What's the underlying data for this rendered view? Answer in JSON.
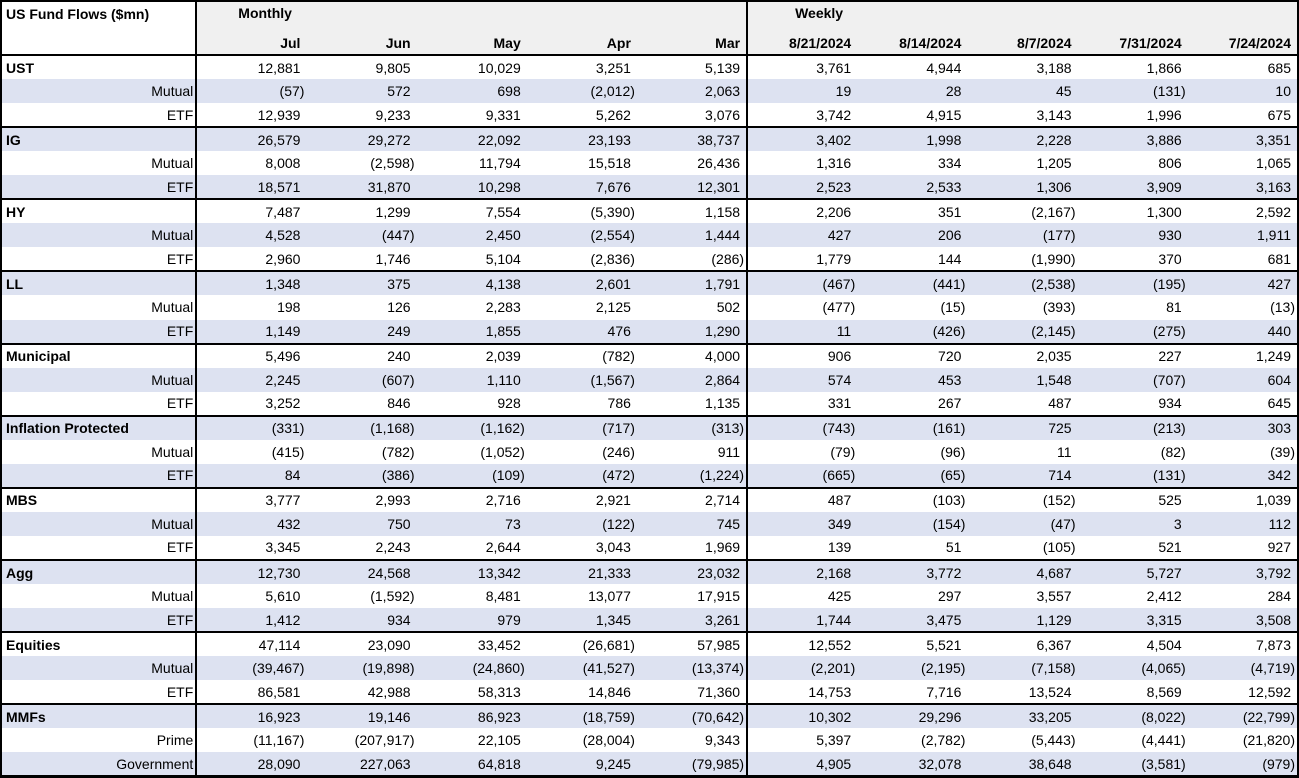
{
  "colors": {
    "row_stripe": "#dde2f1",
    "header_bg": "#f0f0f0",
    "border": "#000000",
    "text": "#000000"
  },
  "chart_data": {
    "type": "table",
    "title": "US Fund Flows ($mn)",
    "column_groups": [
      {
        "label": "Monthly",
        "columns": [
          "Jul",
          "Jun",
          "May",
          "Apr",
          "Mar"
        ]
      },
      {
        "label": "Weekly",
        "columns": [
          "8/21/2024",
          "8/14/2024",
          "8/7/2024",
          "7/31/2024",
          "7/24/2024"
        ]
      }
    ],
    "groups": [
      {
        "name": "UST",
        "rows": [
          {
            "label": "UST",
            "kind": "category",
            "monthly": [
              "12,881",
              "9,805",
              "10,029",
              "3,251",
              "5,139"
            ],
            "weekly": [
              "3,761",
              "4,944",
              "3,188",
              "1,866",
              "685"
            ]
          },
          {
            "label": "Mutual",
            "kind": "sub",
            "monthly": [
              "(57)",
              "572",
              "698",
              "(2,012)",
              "2,063"
            ],
            "weekly": [
              "19",
              "28",
              "45",
              "(131)",
              "10"
            ]
          },
          {
            "label": "ETF",
            "kind": "sub",
            "monthly": [
              "12,939",
              "9,233",
              "9,331",
              "5,262",
              "3,076"
            ],
            "weekly": [
              "3,742",
              "4,915",
              "3,143",
              "1,996",
              "675"
            ]
          }
        ]
      },
      {
        "name": "IG",
        "rows": [
          {
            "label": "IG",
            "kind": "category",
            "monthly": [
              "26,579",
              "29,272",
              "22,092",
              "23,193",
              "38,737"
            ],
            "weekly": [
              "3,402",
              "1,998",
              "2,228",
              "3,886",
              "3,351"
            ]
          },
          {
            "label": "Mutual",
            "kind": "sub",
            "monthly": [
              "8,008",
              "(2,598)",
              "11,794",
              "15,518",
              "26,436"
            ],
            "weekly": [
              "1,316",
              "334",
              "1,205",
              "806",
              "1,065"
            ]
          },
          {
            "label": "ETF",
            "kind": "sub",
            "monthly": [
              "18,571",
              "31,870",
              "10,298",
              "7,676",
              "12,301"
            ],
            "weekly": [
              "2,523",
              "2,533",
              "1,306",
              "3,909",
              "3,163"
            ]
          }
        ]
      },
      {
        "name": "HY",
        "rows": [
          {
            "label": "HY",
            "kind": "category",
            "monthly": [
              "7,487",
              "1,299",
              "7,554",
              "(5,390)",
              "1,158"
            ],
            "weekly": [
              "2,206",
              "351",
              "(2,167)",
              "1,300",
              "2,592"
            ]
          },
          {
            "label": "Mutual",
            "kind": "sub",
            "monthly": [
              "4,528",
              "(447)",
              "2,450",
              "(2,554)",
              "1,444"
            ],
            "weekly": [
              "427",
              "206",
              "(177)",
              "930",
              "1,911"
            ]
          },
          {
            "label": "ETF",
            "kind": "sub",
            "monthly": [
              "2,960",
              "1,746",
              "5,104",
              "(2,836)",
              "(286)"
            ],
            "weekly": [
              "1,779",
              "144",
              "(1,990)",
              "370",
              "681"
            ]
          }
        ]
      },
      {
        "name": "LL",
        "rows": [
          {
            "label": "LL",
            "kind": "category",
            "monthly": [
              "1,348",
              "375",
              "4,138",
              "2,601",
              "1,791"
            ],
            "weekly": [
              "(467)",
              "(441)",
              "(2,538)",
              "(195)",
              "427"
            ]
          },
          {
            "label": "Mutual",
            "kind": "sub",
            "monthly": [
              "198",
              "126",
              "2,283",
              "2,125",
              "502"
            ],
            "weekly": [
              "(477)",
              "(15)",
              "(393)",
              "81",
              "(13)"
            ]
          },
          {
            "label": "ETF",
            "kind": "sub",
            "monthly": [
              "1,149",
              "249",
              "1,855",
              "476",
              "1,290"
            ],
            "weekly": [
              "11",
              "(426)",
              "(2,145)",
              "(275)",
              "440"
            ]
          }
        ]
      },
      {
        "name": "Municipal",
        "rows": [
          {
            "label": "Municipal",
            "kind": "category",
            "monthly": [
              "5,496",
              "240",
              "2,039",
              "(782)",
              "4,000"
            ],
            "weekly": [
              "906",
              "720",
              "2,035",
              "227",
              "1,249"
            ]
          },
          {
            "label": "Mutual",
            "kind": "sub",
            "monthly": [
              "2,245",
              "(607)",
              "1,110",
              "(1,567)",
              "2,864"
            ],
            "weekly": [
              "574",
              "453",
              "1,548",
              "(707)",
              "604"
            ]
          },
          {
            "label": "ETF",
            "kind": "sub",
            "monthly": [
              "3,252",
              "846",
              "928",
              "786",
              "1,135"
            ],
            "weekly": [
              "331",
              "267",
              "487",
              "934",
              "645"
            ]
          }
        ]
      },
      {
        "name": "Inflation Protected",
        "rows": [
          {
            "label": "Inflation Protected",
            "kind": "category",
            "monthly": [
              "(331)",
              "(1,168)",
              "(1,162)",
              "(717)",
              "(313)"
            ],
            "weekly": [
              "(743)",
              "(161)",
              "725",
              "(213)",
              "303"
            ]
          },
          {
            "label": "Mutual",
            "kind": "sub",
            "monthly": [
              "(415)",
              "(782)",
              "(1,052)",
              "(246)",
              "911"
            ],
            "weekly": [
              "(79)",
              "(96)",
              "11",
              "(82)",
              "(39)"
            ]
          },
          {
            "label": "ETF",
            "kind": "sub",
            "monthly": [
              "84",
              "(386)",
              "(109)",
              "(472)",
              "(1,224)"
            ],
            "weekly": [
              "(665)",
              "(65)",
              "714",
              "(131)",
              "342"
            ]
          }
        ]
      },
      {
        "name": "MBS",
        "rows": [
          {
            "label": "MBS",
            "kind": "category",
            "monthly": [
              "3,777",
              "2,993",
              "2,716",
              "2,921",
              "2,714"
            ],
            "weekly": [
              "487",
              "(103)",
              "(152)",
              "525",
              "1,039"
            ]
          },
          {
            "label": "Mutual",
            "kind": "sub",
            "monthly": [
              "432",
              "750",
              "73",
              "(122)",
              "745"
            ],
            "weekly": [
              "349",
              "(154)",
              "(47)",
              "3",
              "112"
            ]
          },
          {
            "label": "ETF",
            "kind": "sub",
            "monthly": [
              "3,345",
              "2,243",
              "2,644",
              "3,043",
              "1,969"
            ],
            "weekly": [
              "139",
              "51",
              "(105)",
              "521",
              "927"
            ]
          }
        ]
      },
      {
        "name": "Agg",
        "rows": [
          {
            "label": "Agg",
            "kind": "category",
            "monthly": [
              "12,730",
              "24,568",
              "13,342",
              "21,333",
              "23,032"
            ],
            "weekly": [
              "2,168",
              "3,772",
              "4,687",
              "5,727",
              "3,792"
            ]
          },
          {
            "label": "Mutual",
            "kind": "sub",
            "monthly": [
              "5,610",
              "(1,592)",
              "8,481",
              "13,077",
              "17,915"
            ],
            "weekly": [
              "425",
              "297",
              "3,557",
              "2,412",
              "284"
            ]
          },
          {
            "label": "ETF",
            "kind": "sub",
            "monthly": [
              "1,412",
              "934",
              "979",
              "1,345",
              "3,261"
            ],
            "weekly": [
              "1,744",
              "3,475",
              "1,129",
              "3,315",
              "3,508"
            ]
          }
        ]
      },
      {
        "name": "Equities",
        "rows": [
          {
            "label": "Equities",
            "kind": "category",
            "monthly": [
              "47,114",
              "23,090",
              "33,452",
              "(26,681)",
              "57,985"
            ],
            "weekly": [
              "12,552",
              "5,521",
              "6,367",
              "4,504",
              "7,873"
            ]
          },
          {
            "label": "Mutual",
            "kind": "sub",
            "monthly": [
              "(39,467)",
              "(19,898)",
              "(24,860)",
              "(41,527)",
              "(13,374)"
            ],
            "weekly": [
              "(2,201)",
              "(2,195)",
              "(7,158)",
              "(4,065)",
              "(4,719)"
            ]
          },
          {
            "label": "ETF",
            "kind": "sub",
            "monthly": [
              "86,581",
              "42,988",
              "58,313",
              "14,846",
              "71,360"
            ],
            "weekly": [
              "14,753",
              "7,716",
              "13,524",
              "8,569",
              "12,592"
            ]
          }
        ]
      },
      {
        "name": "MMFs",
        "rows": [
          {
            "label": "MMFs",
            "kind": "category",
            "monthly": [
              "16,923",
              "19,146",
              "86,923",
              "(18,759)",
              "(70,642)"
            ],
            "weekly": [
              "10,302",
              "29,296",
              "33,205",
              "(8,022)",
              "(22,799)"
            ]
          },
          {
            "label": "Prime",
            "kind": "sub",
            "monthly": [
              "(11,167)",
              "(207,917)",
              "22,105",
              "(28,004)",
              "9,343"
            ],
            "weekly": [
              "5,397",
              "(2,782)",
              "(5,443)",
              "(4,441)",
              "(21,820)"
            ]
          },
          {
            "label": "Government",
            "kind": "sub",
            "monthly": [
              "28,090",
              "227,063",
              "64,818",
              "9,245",
              "(79,985)"
            ],
            "weekly": [
              "4,905",
              "32,078",
              "38,648",
              "(3,581)",
              "(979)"
            ]
          }
        ]
      }
    ]
  }
}
